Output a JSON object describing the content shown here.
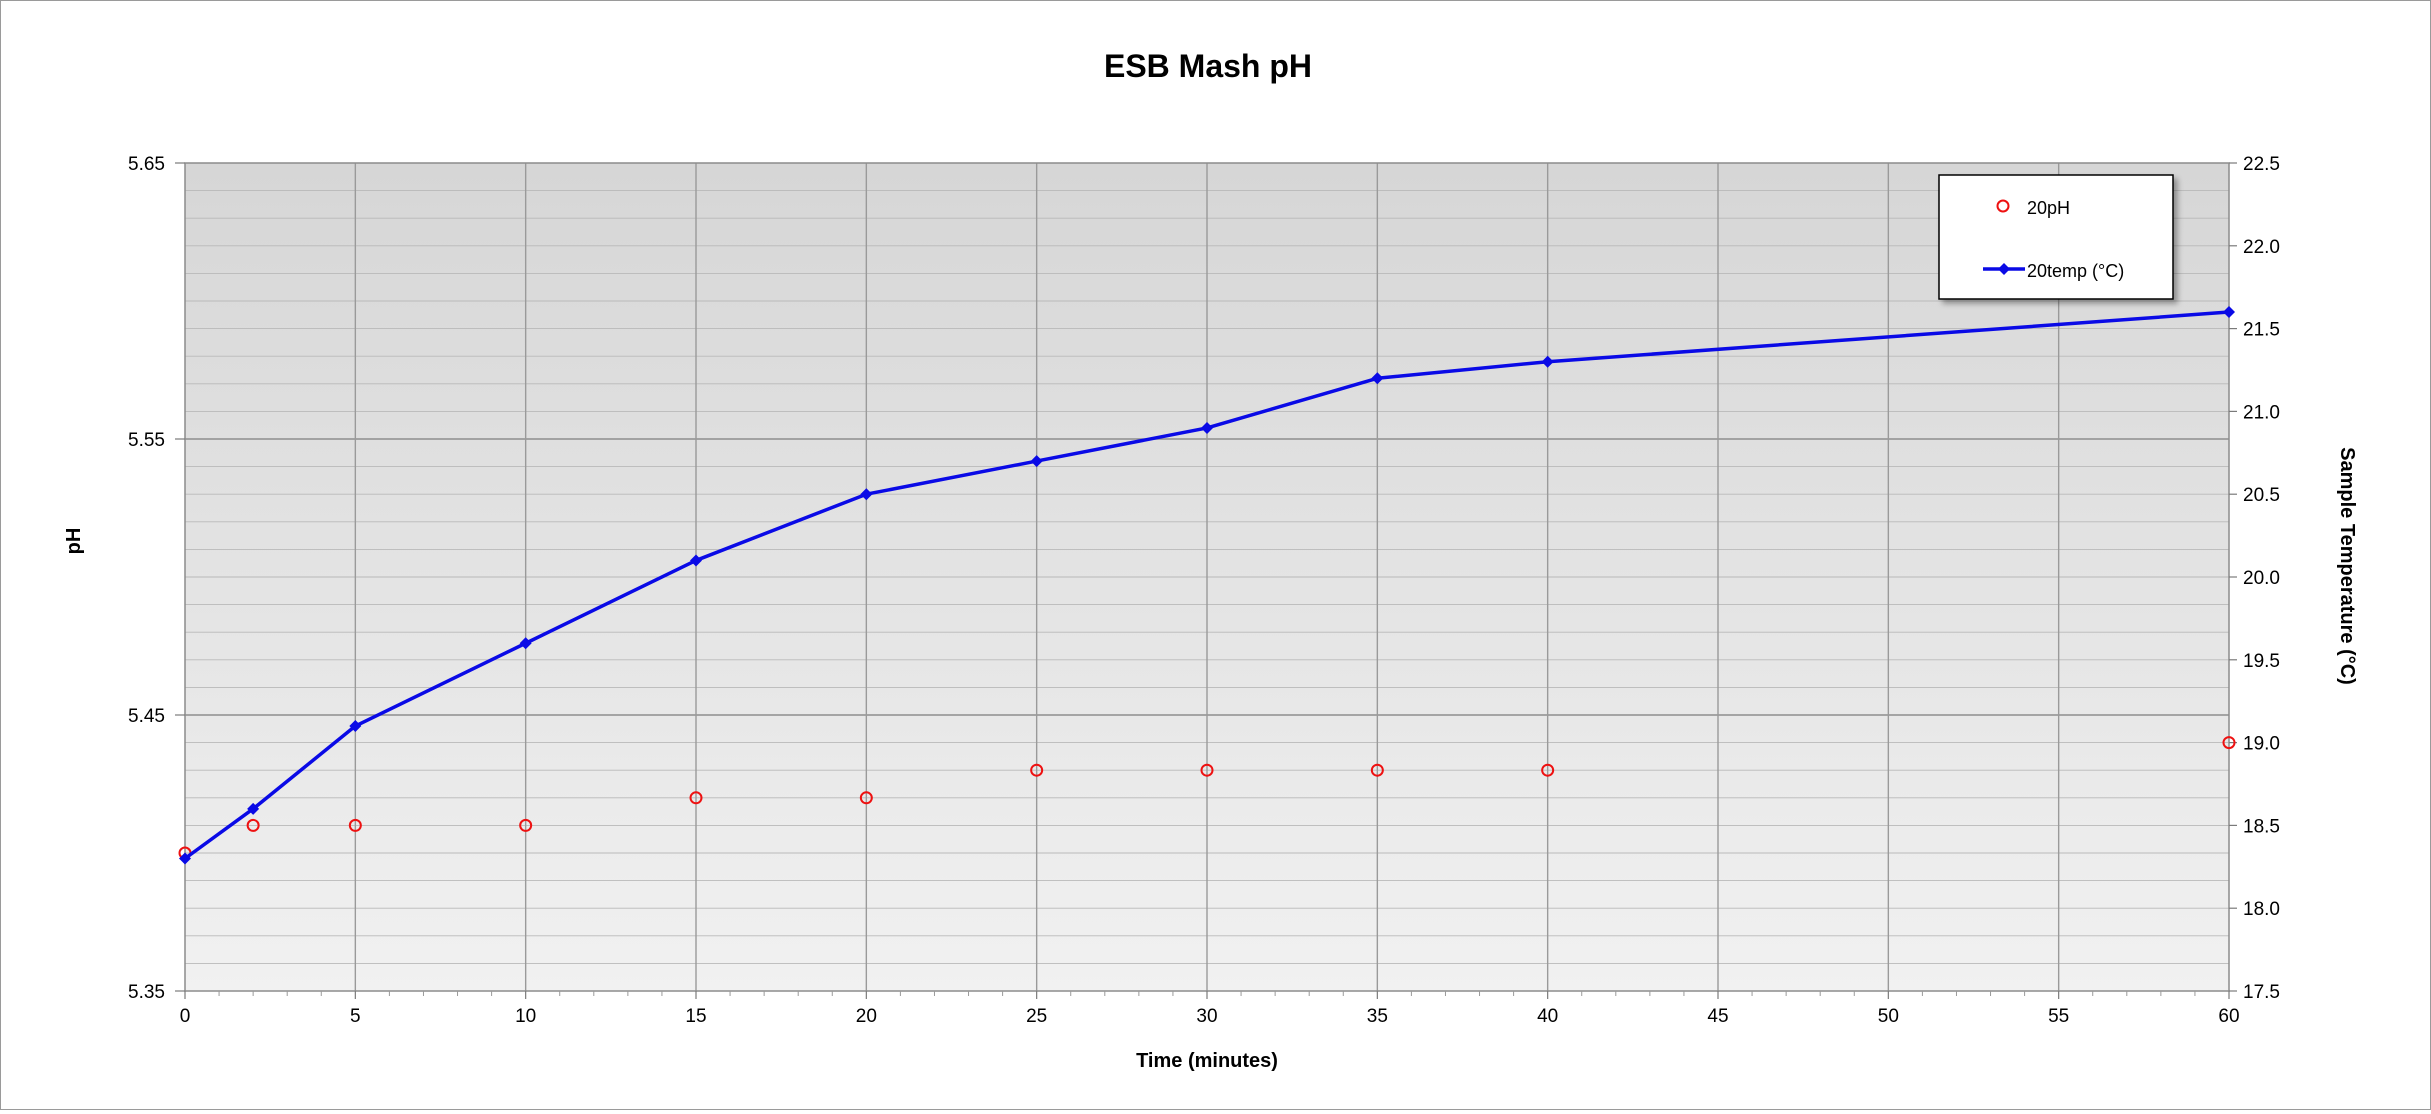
{
  "chart_data": {
    "type": "line",
    "title": "ESB Mash pH",
    "xlabel": "Time (minutes)",
    "ylabel": "pH",
    "y2label": "Sample Temperature  (°C)",
    "xlim": [
      0,
      60
    ],
    "ylim": [
      5.35,
      5.65
    ],
    "y2lim": [
      17.5,
      22.5
    ],
    "x_ticks": [
      "0",
      "5",
      "10",
      "15",
      "20",
      "25",
      "30",
      "35",
      "40",
      "45",
      "50",
      "55",
      "60"
    ],
    "y_ticks": [
      "5.35",
      "5.45",
      "5.55",
      "5.65"
    ],
    "y2_ticks": [
      "17.5",
      "18.0",
      "18.5",
      "19.0",
      "19.5",
      "20.0",
      "20.5",
      "21.0",
      "21.5",
      "22.0",
      "22.5"
    ],
    "grid": true,
    "legend_position": "top-right",
    "series": [
      {
        "name": "20pH",
        "axis": "left",
        "style": "markers",
        "color": "#ee1111",
        "x": [
          0,
          2,
          5,
          10,
          15,
          20,
          25,
          30,
          35,
          40,
          60
        ],
        "y": [
          5.4,
          5.41,
          5.41,
          5.41,
          5.42,
          5.42,
          5.43,
          5.43,
          5.43,
          5.43,
          5.44
        ]
      },
      {
        "name": "20temp (°C)",
        "axis": "right",
        "style": "line-diamond",
        "color": "#0a0ae6",
        "x": [
          0,
          2,
          5,
          10,
          15,
          20,
          25,
          30,
          35,
          40,
          60
        ],
        "y": [
          18.3,
          18.6,
          19.1,
          19.6,
          20.1,
          20.5,
          20.7,
          20.9,
          21.2,
          21.3,
          21.6
        ]
      }
    ]
  }
}
